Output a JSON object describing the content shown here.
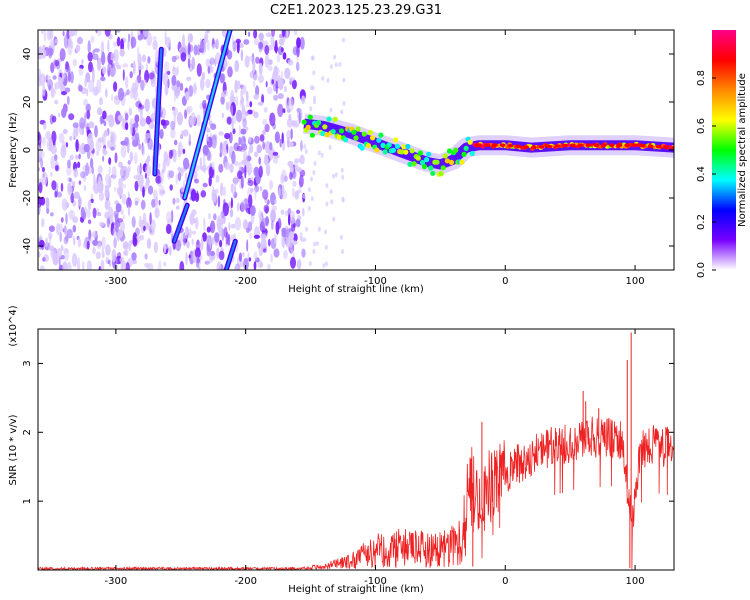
{
  "title": "C2E1.2023.125.23.29.G31",
  "chart_data": [
    {
      "type": "heatmap",
      "xlabel": "Height of straight line (km)",
      "ylabel": "Frequency (Hz)",
      "xlim": [
        -360,
        130
      ],
      "ylim": [
        -50,
        50
      ],
      "xticks": [
        -300,
        -200,
        -100,
        0,
        100
      ],
      "xtick_labels": [
        "-300",
        "-200",
        "-100",
        "0",
        "100"
      ],
      "yticks": [
        -40,
        -20,
        0,
        20,
        40
      ],
      "ytick_labels": [
        "-40",
        "-20",
        "0",
        "20",
        "40"
      ],
      "colorbar": {
        "label": "Normalized spectral amplitude",
        "range": [
          0,
          1
        ],
        "ticks": [
          0.0,
          0.2,
          0.4,
          0.6,
          0.8
        ],
        "tick_labels": [
          "0.0",
          "0.2",
          "0.4",
          "0.6",
          "0.8"
        ],
        "colors": [
          "#ffffff",
          "#7700ff",
          "#0000ff",
          "#00ffff",
          "#00ff00",
          "#ffff00",
          "#ff8800",
          "#ff0000",
          "#ff0088"
        ]
      },
      "noise_region_x": [
        -360,
        -155
      ],
      "streaks": [
        {
          "x": [
            -270,
            -265
          ],
          "y": [
            -10,
            42
          ]
        },
        {
          "x": [
            -247,
            -212
          ],
          "y": [
            -20,
            50
          ]
        },
        {
          "x": [
            -255,
            -245
          ],
          "y": [
            -38,
            -23
          ]
        },
        {
          "x": [
            -215,
            -208
          ],
          "y": [
            -50,
            -38
          ]
        }
      ],
      "main_track": {
        "x": [
          -155,
          -140,
          -120,
          -100,
          -80,
          -60,
          -50,
          -40,
          -30,
          -20,
          0,
          20,
          50,
          80,
          100,
          130
        ],
        "y": [
          11,
          10,
          7,
          3,
          -1,
          -5,
          -6,
          -4,
          1,
          2,
          2,
          1,
          2,
          2,
          2,
          1
        ]
      }
    },
    {
      "type": "line",
      "xlabel": "Height of straight line (km)",
      "ylabel": "SNR (10 * v/v)",
      "y_multiplier": "(x10^4)",
      "xlim": [
        -360,
        130
      ],
      "ylim": [
        0,
        3.5
      ],
      "xticks": [
        -300,
        -200,
        -100,
        0,
        100
      ],
      "xtick_labels": [
        "-300",
        "-200",
        "-100",
        "0",
        "100"
      ],
      "yticks": [
        1,
        2,
        3
      ],
      "ytick_labels": [
        "1",
        "2",
        "3"
      ],
      "line_color": "#ee2222",
      "series": [
        {
          "x": [
            -360,
            -300,
            -200,
            -160,
            -140,
            -120,
            -110,
            -100,
            -80,
            -60,
            -50,
            -40,
            -35,
            -30,
            -27,
            -24,
            -20,
            -17,
            -14,
            -10,
            -5,
            0,
            10,
            20,
            30,
            40,
            50,
            60,
            65,
            70,
            80,
            90,
            95,
            98,
            100,
            105,
            110,
            120,
            130
          ],
          "y": [
            0.02,
            0.02,
            0.02,
            0.02,
            0.05,
            0.12,
            0.2,
            0.28,
            0.32,
            0.3,
            0.3,
            0.35,
            0.45,
            0.9,
            1.4,
            1.2,
            1.0,
            0.8,
            1.3,
            1.2,
            1.3,
            1.4,
            1.55,
            1.65,
            1.75,
            1.8,
            1.85,
            1.9,
            1.95,
            1.9,
            1.92,
            1.9,
            1.0,
            0.6,
            1.2,
            1.7,
            1.85,
            1.8,
            1.78
          ]
        }
      ],
      "spikes": [
        {
          "x": -18,
          "y": 2.15
        },
        {
          "x": 60,
          "y": 2.6
        },
        {
          "x": 62,
          "y": 2.45
        },
        {
          "x": 72,
          "y": 2.35
        },
        {
          "x": 94,
          "y": 3.05
        },
        {
          "x": 97,
          "y": 3.45
        }
      ],
      "dips": [
        {
          "x": 96,
          "y": 0.03
        },
        {
          "x": -25,
          "y": 0.05
        }
      ]
    }
  ]
}
